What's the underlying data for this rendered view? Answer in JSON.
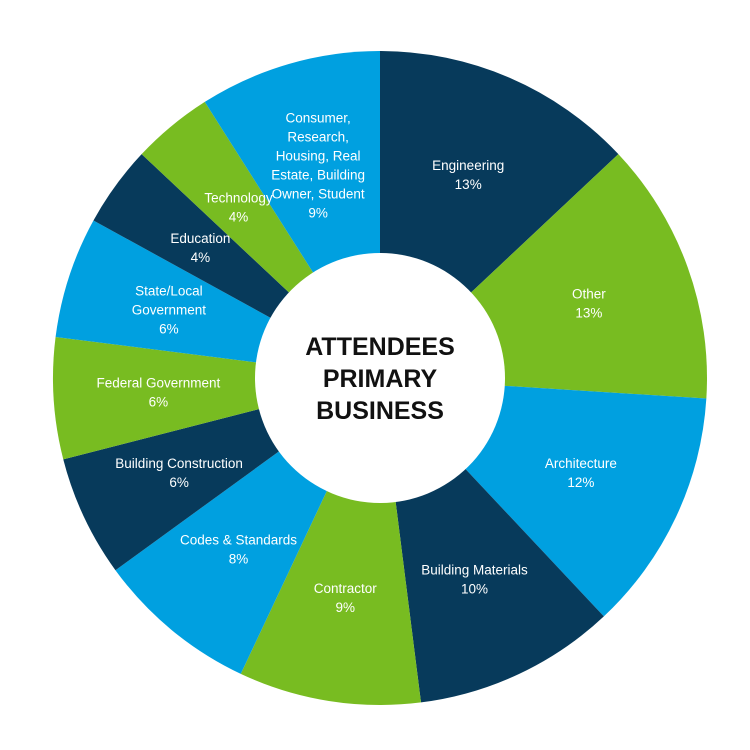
{
  "chart_data": {
    "type": "pie",
    "title": "ATTENDEES PRIMARY BUSINESS",
    "title_lines": [
      "ATTENDEES",
      "PRIMARY",
      "BUSINESS"
    ],
    "slices": [
      {
        "lines": [
          "Engineering"
        ],
        "label": "Engineering",
        "value": 13,
        "value_label": "13%",
        "color": "#073a5b"
      },
      {
        "lines": [
          "Other"
        ],
        "label": "Other",
        "value": 13,
        "value_label": "13%",
        "color": "#78bc21"
      },
      {
        "lines": [
          "Architecture"
        ],
        "label": "Architecture",
        "value": 12,
        "value_label": "12%",
        "color": "#00a0e0"
      },
      {
        "lines": [
          "Building Materials"
        ],
        "label": "Building Materials",
        "value": 10,
        "value_label": "10%",
        "color": "#073a5b"
      },
      {
        "lines": [
          "Contractor"
        ],
        "label": "Contractor",
        "value": 9,
        "value_label": "9%",
        "color": "#78bc21"
      },
      {
        "lines": [
          "Codes & Standards"
        ],
        "label": "Codes & Standards",
        "value": 8,
        "value_label": "8%",
        "color": "#00a0e0"
      },
      {
        "lines": [
          "Building Construction"
        ],
        "label": "Building Construction",
        "value": 6,
        "value_label": "6%",
        "color": "#073a5b"
      },
      {
        "lines": [
          "Federal Government"
        ],
        "label": "Federal Government",
        "value": 6,
        "value_label": "6%",
        "color": "#78bc21"
      },
      {
        "lines": [
          "State/Local",
          "Government"
        ],
        "label": "State/Local Government",
        "value": 6,
        "value_label": "6%",
        "color": "#00a0e0"
      },
      {
        "lines": [
          "Education"
        ],
        "label": "Education",
        "value": 4,
        "value_label": "4%",
        "color": "#073a5b"
      },
      {
        "lines": [
          "Technology"
        ],
        "label": "Technology",
        "value": 4,
        "value_label": "4%",
        "color": "#78bc21"
      },
      {
        "lines": [
          "Consumer,",
          "Research,",
          "Housing, Real",
          "Estate, Building",
          "Owner, Student"
        ],
        "label": "Consumer, Research, Housing, Real Estate, Building Owner, Student",
        "value": 9,
        "value_label": "9%",
        "color": "#00a0e0"
      }
    ]
  }
}
